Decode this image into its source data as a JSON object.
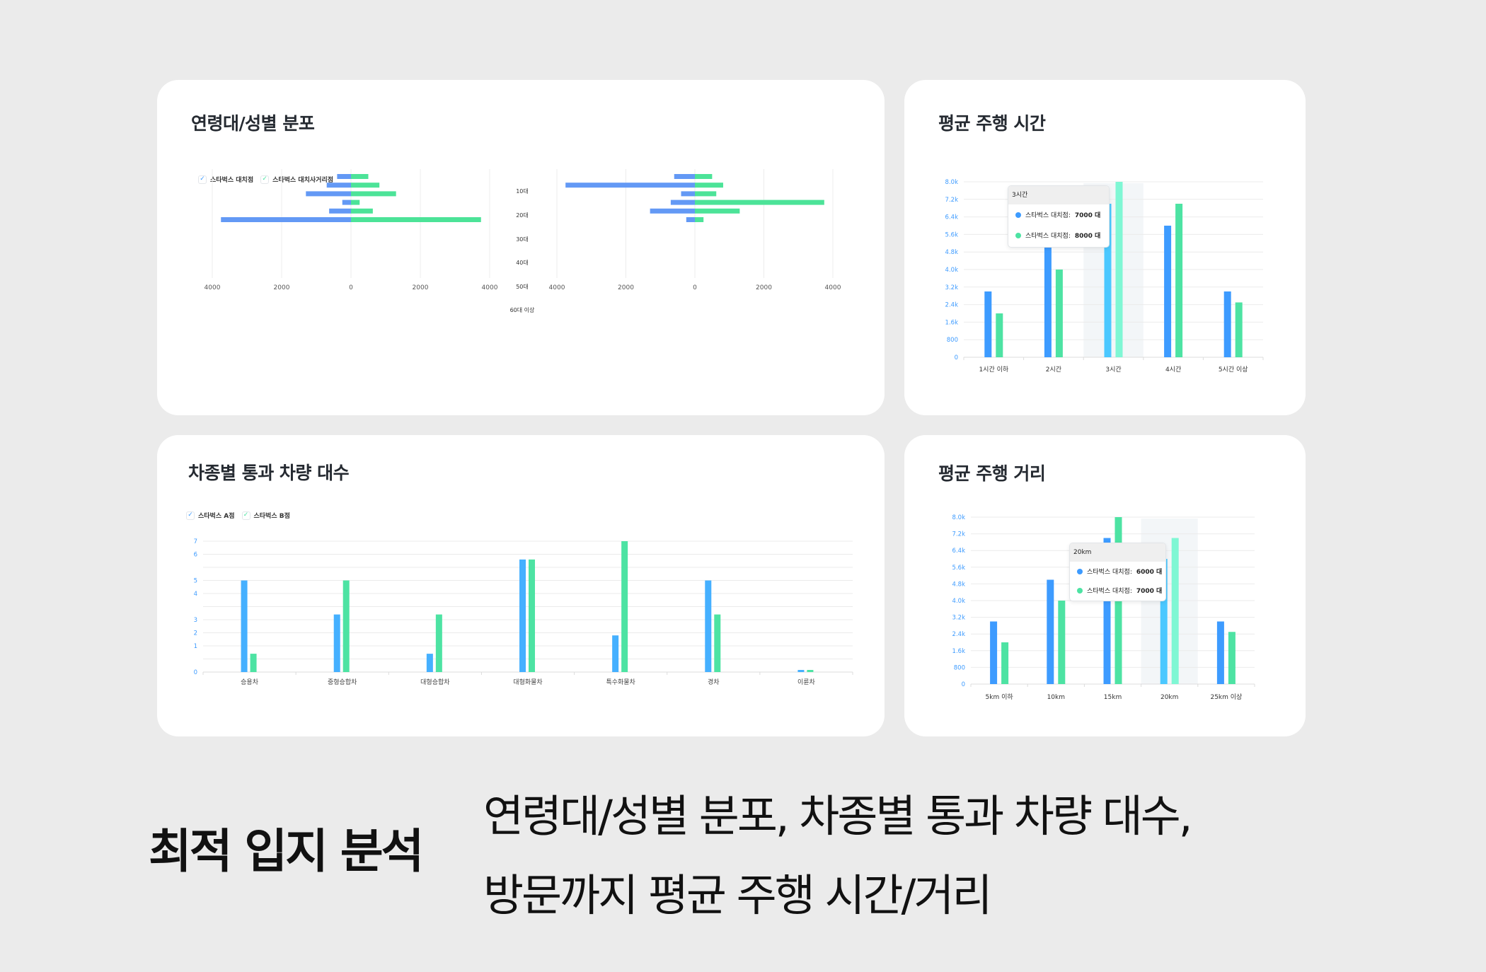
{
  "colors": {
    "background": "#ebebeb",
    "card": "#ffffff",
    "series_blue": "#3d9bff",
    "series_green": "#4de3a3",
    "highlight_blue": "#4bc8ff",
    "highlight_green": "#7ff7d4",
    "butterfly_blue": "#6399f5",
    "butterfly_green": "#4ce398",
    "axis_label_blue": "#3d9bff",
    "grid": "#ebebeb"
  },
  "cards": {
    "age_gender": {
      "title": "연령대/성별 분포",
      "legend": [
        {
          "label": "스타벅스 대치점",
          "check_color": "#3d9bff"
        },
        {
          "label": "스타벅스 대치사거리점",
          "check_color": "#4de3a3"
        }
      ]
    },
    "drive_time": {
      "title": "평균 주행 시간",
      "tooltip": {
        "header": "3시간",
        "rows": [
          {
            "label": "스타벅스 대치점:",
            "value": "7000 대",
            "color": "#3d9bff"
          },
          {
            "label": "스타벅스 대치점:",
            "value": "8000 대",
            "color": "#4de3a3"
          }
        ]
      }
    },
    "vehicle_type": {
      "title": "차종별 통과 차량 대수",
      "legend": [
        {
          "label": "스타벅스 A점",
          "check_color": "#3d9bff"
        },
        {
          "label": "스타벅스 B점",
          "check_color": "#4de3a3"
        }
      ]
    },
    "drive_distance": {
      "title": "평균 주행 거리",
      "tooltip": {
        "header": "20km",
        "rows": [
          {
            "label": "스타벅스 대치점:",
            "value": "6000 대",
            "color": "#3d9bff"
          },
          {
            "label": "스타벅스 대치점:",
            "value": "7000 대",
            "color": "#4de3a3"
          }
        ]
      }
    }
  },
  "footer": {
    "heading": "최적 입지 분석",
    "description_line1": "연령대/성별 분포, 차종별 통과 차량 대수,",
    "description_line2": "방문까지 평균 주행 시간/거리"
  },
  "chart_data": [
    {
      "type": "bar",
      "orientation": "horizontal-butterfly",
      "title": "연령대/성별 분포",
      "subtitle": "left panel",
      "age_labels": [
        "10대",
        "20대",
        "30대",
        "40대",
        "50대",
        "60대 이상"
      ],
      "xticks": [
        "4000",
        "2000",
        "0",
        "2000",
        "4000"
      ],
      "xlim": [
        -4000,
        4000
      ],
      "series": [
        {
          "name": "스타벅스 대치점",
          "values": [
            -400,
            -700,
            -1300,
            -250,
            -630,
            -3750
          ]
        },
        {
          "name": "스타벅스 대치사거리점",
          "values": [
            500,
            820,
            1300,
            250,
            630,
            3750
          ]
        }
      ],
      "legend_position": "top-left"
    },
    {
      "type": "bar",
      "orientation": "horizontal-butterfly",
      "title": "연령대/성별 분포",
      "subtitle": "right panel",
      "xticks": [
        "4000",
        "2000",
        "0",
        "2000",
        "4000"
      ],
      "xlim": [
        -4000,
        4000
      ],
      "series": [
        {
          "name": "스타벅스 대치점",
          "values": [
            -600,
            -3750,
            -400,
            -700,
            -1300,
            -250
          ]
        },
        {
          "name": "스타벅스 대치사거리점",
          "values": [
            500,
            820,
            620,
            3750,
            1300,
            250
          ]
        }
      ]
    },
    {
      "type": "bar",
      "title": "평균 주행 시간",
      "categories": [
        "1시간 이하",
        "2시간",
        "3시간",
        "4시간",
        "5시간 이상"
      ],
      "series": [
        {
          "name": "스타벅스 대치점",
          "values": [
            3000,
            5000,
            7000,
            6000,
            3000
          ]
        },
        {
          "name": "스타벅스 대치점 (2)",
          "values": [
            2000,
            4000,
            8000,
            7000,
            2500
          ]
        }
      ],
      "yticks": [
        "0",
        "800",
        "1.6k",
        "2.4k",
        "3.2k",
        "4.0k",
        "4.8k",
        "5.6k",
        "6.4k",
        "7.2k",
        "8.0k"
      ],
      "ylim": [
        0,
        8000
      ],
      "highlighted_category": "3시간",
      "grid": true
    },
    {
      "type": "bar",
      "title": "차종별 통과 차량 대수",
      "categories": [
        "승용차",
        "중형승합차",
        "대형승합차",
        "대형화물차",
        "특수화물차",
        "경차",
        "이륜차"
      ],
      "series": [
        {
          "name": "스타벅스 A점",
          "values": [
            5,
            3.2,
            0.7,
            5.8,
            1.8,
            5,
            0.05
          ]
        },
        {
          "name": "스타벅스 B점",
          "values": [
            0.7,
            5,
            3.2,
            5.8,
            7,
            3.2,
            0.05
          ]
        }
      ],
      "ytick_rows": [
        "0",
        "",
        "1",
        "2",
        "3",
        "",
        "4",
        "5",
        "",
        "6",
        "7"
      ],
      "grid": true,
      "legend_position": "top-left"
    },
    {
      "type": "bar",
      "title": "평균 주행 거리",
      "categories": [
        "5km 이하",
        "10km",
        "15km",
        "20km",
        "25km 이상"
      ],
      "series": [
        {
          "name": "스타벅스 대치점",
          "values": [
            3000,
            5000,
            7000,
            6000,
            3000
          ]
        },
        {
          "name": "스타벅스 대치점 (2)",
          "values": [
            2000,
            4000,
            8000,
            7000,
            2500
          ]
        }
      ],
      "yticks": [
        "0",
        "800",
        "1.6k",
        "2.4k",
        "3.2k",
        "4.0k",
        "4.8k",
        "5.6k",
        "6.4k",
        "7.2k",
        "8.0k"
      ],
      "ylim": [
        0,
        8000
      ],
      "highlighted_category": "20km",
      "grid": true
    }
  ]
}
